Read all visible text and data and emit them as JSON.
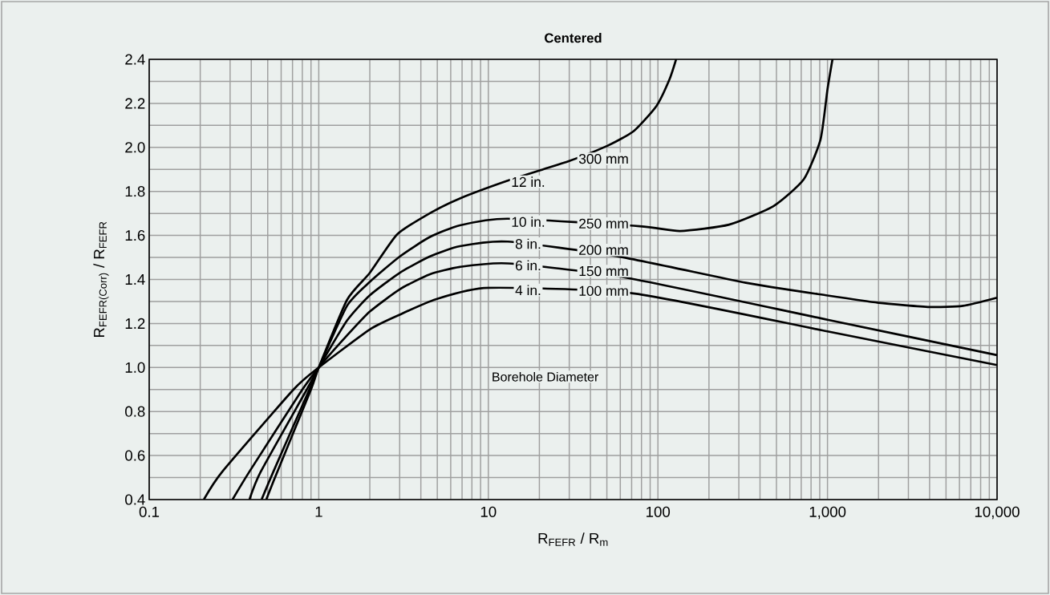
{
  "chart_data": {
    "type": "line",
    "title": "Centered",
    "xlabel": "R$_{FEFR}$ / R$_{m}$",
    "ylabel": "R$_{FEFR(Corr)}$ / R$_{FEFR}$",
    "log": "x",
    "grid": true,
    "marker": "none",
    "line_style": "solid",
    "xlim": [
      0.1,
      10000
    ],
    "ylim": [
      0.4,
      2.4
    ],
    "xticks": [
      0.1,
      1,
      10,
      100,
      {
        "value": 1000,
        "label": "1,000"
      },
      {
        "value": 10000,
        "label": "10,000"
      }
    ],
    "yticks": [
      0.4,
      0.6,
      0.8,
      {
        "value": 1,
        "label": "1.0"
      },
      1.2,
      1.4,
      1.6,
      1.8,
      {
        "value": 2,
        "label": "2.0"
      },
      2.2,
      2.4
    ],
    "series": [
      {
        "color": "#000000",
        "x": [
          0.21,
          0.27,
          0.71,
          1,
          2.0,
          3.0,
          4.9,
          10,
          73,
          1000,
          10000
        ],
        "values": [
          0.4,
          0.527,
          0.9,
          1.0,
          1.173,
          1.24,
          1.31,
          1.362,
          1.336,
          1.164,
          1.011
        ]
      },
      {
        "color": "#000000",
        "x": [
          0.31,
          0.39,
          0.8,
          1,
          1.47,
          2.0,
          3.0,
          4.5,
          6.8,
          13,
          63,
          1000,
          10000
        ],
        "values": [
          0.4,
          0.527,
          0.9,
          1.0,
          1.146,
          1.254,
          1.355,
          1.423,
          1.457,
          1.473,
          1.41,
          1.217,
          1.056
        ]
      },
      {
        "color": "#000000",
        "x": [
          0.39,
          0.455,
          0.85,
          1,
          1.47,
          2.0,
          3.0,
          4.5,
          6.8,
          13,
          57,
          330,
          1000,
          2000,
          4000,
          6300,
          10000
        ],
        "values": [
          0.4,
          0.527,
          0.9,
          1.0,
          1.214,
          1.328,
          1.43,
          1.504,
          1.551,
          1.572,
          1.506,
          1.385,
          1.327,
          1.294,
          1.275,
          1.28,
          1.317
        ]
      },
      {
        "color": "#000000",
        "x": [
          0.46,
          0.54,
          0.88,
          1,
          1.47,
          2.0,
          3.0,
          4.5,
          6.8,
          13,
          78,
          135,
          263,
          480,
          725,
          910,
          1000,
          1070
        ],
        "values": [
          0.4,
          0.527,
          0.9,
          1.0,
          1.281,
          1.389,
          1.504,
          1.592,
          1.646,
          1.676,
          1.642,
          1.62,
          1.649,
          1.733,
          1.855,
          2.036,
          2.264,
          2.4
        ]
      },
      {
        "color": "#000000",
        "x": [
          0.49,
          0.57,
          0.9,
          1,
          1.47,
          2.0,
          2.9,
          4.5,
          6.8,
          12.7,
          21,
          30,
          50,
          72,
          98,
          117,
          128
        ],
        "values": [
          0.4,
          0.527,
          0.9,
          1.0,
          1.308,
          1.43,
          1.605,
          1.7,
          1.768,
          1.846,
          1.9,
          1.938,
          2.006,
          2.074,
          2.188,
          2.309,
          2.4
        ]
      }
    ],
    "annotations": [
      "4 in.",
      "100 mm",
      "6 in.",
      "150 mm",
      "8 in.",
      "200 mm",
      "10 in.",
      "250 mm",
      "12 in.",
      "300 mm",
      "Borehole Diameter"
    ]
  }
}
